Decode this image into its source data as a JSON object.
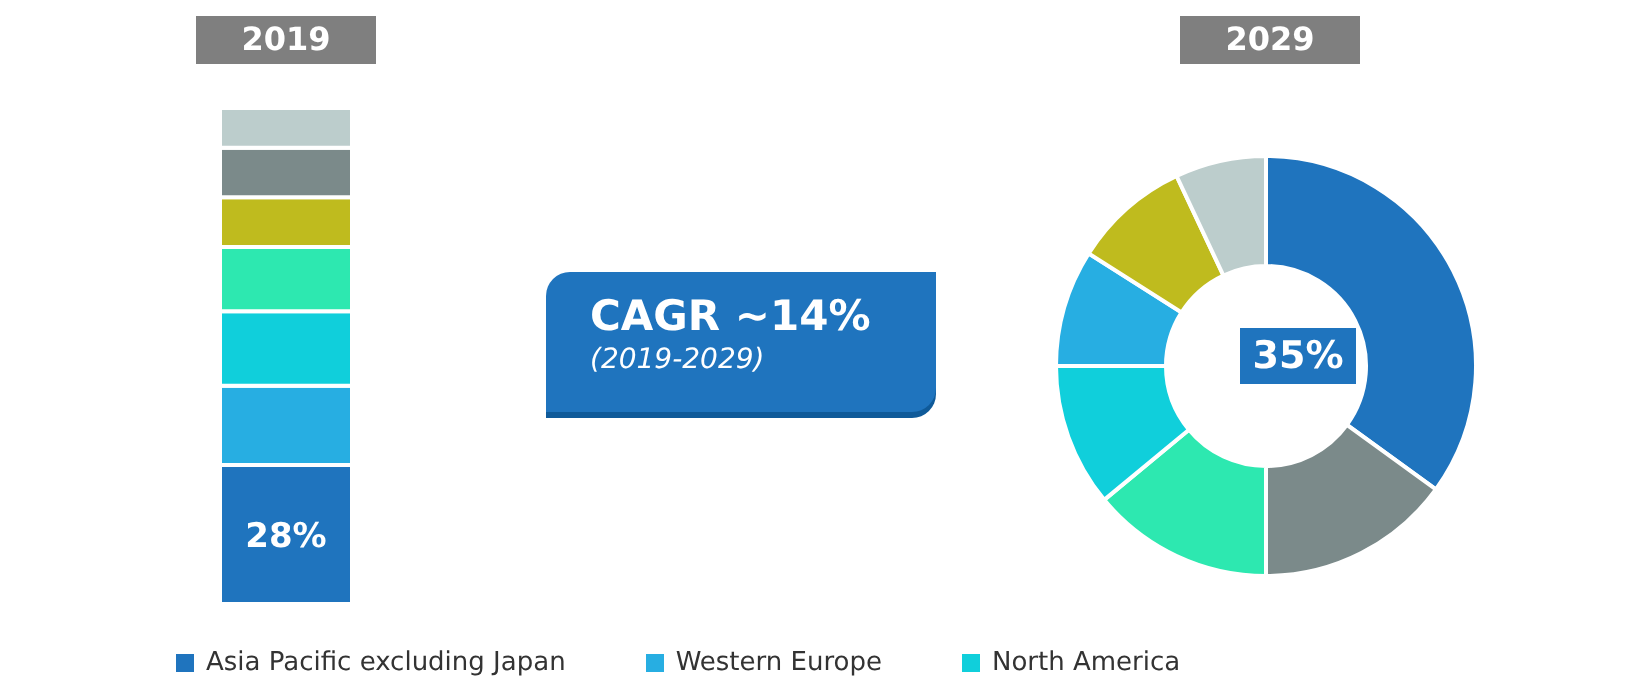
{
  "chart_data": [
    {
      "type": "bar",
      "title": "2019",
      "categories": [
        null
      ],
      "stacked": true,
      "ylim": [
        0,
        100
      ],
      "tick_labels": false,
      "legend": "bottom",
      "series": [
        {
          "name": "Asia Pacific excluding Japan",
          "color": "#1f74be",
          "values": [
            28
          ],
          "value_labels": [
            "28%"
          ]
        },
        {
          "name": "Western Europe",
          "color": "#27aee2",
          "values": [
            16
          ]
        },
        {
          "name": "North America",
          "color": "#10cfdb",
          "values": [
            15
          ]
        },
        {
          "color": "#2de8b0",
          "values": [
            13
          ]
        },
        {
          "color": "#bfbb1e",
          "values": [
            10
          ]
        },
        {
          "color": "#7b8a8a",
          "values": [
            10
          ]
        },
        {
          "color": "#bccdcc",
          "values": [
            8
          ]
        }
      ]
    },
    {
      "type": "other",
      "title": "CAGR ~14%",
      "subtitle": "(2019-2029)"
    },
    {
      "type": "donut",
      "title": "2029",
      "categories": [
        null,
        null,
        null,
        null,
        null,
        null,
        null
      ],
      "values": [
        35,
        15,
        14,
        11,
        9,
        9,
        7
      ],
      "colors": [
        "#1f74be",
        "#7b8a8a",
        "#2de8b0",
        "#10cfdb",
        "#27aee2",
        "#bfbb1e",
        "#bccdcc"
      ],
      "value_labels": [
        "35%",
        null,
        null,
        null,
        null,
        null,
        null
      ]
    }
  ]
}
